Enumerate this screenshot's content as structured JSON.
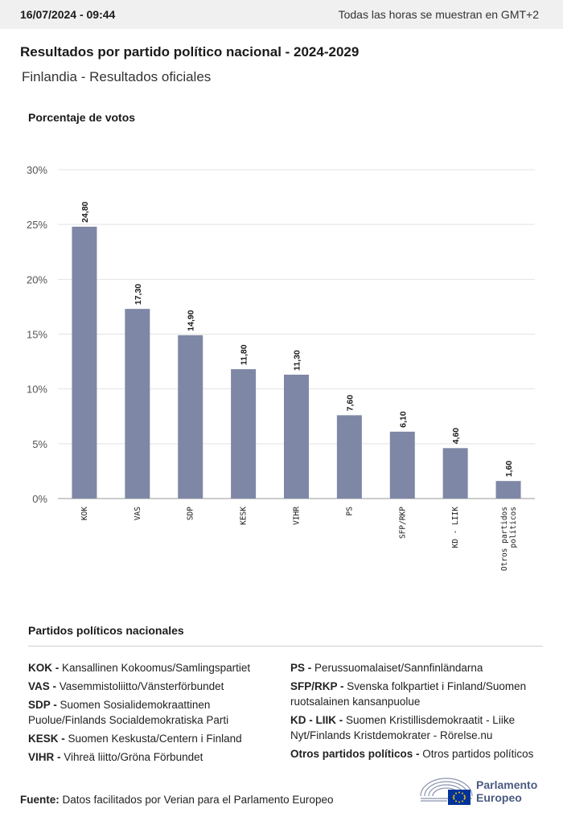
{
  "header": {
    "datetime": "16/07/2024 - 09:44",
    "timezone_note": "Todas las horas se muestran en GMT+2"
  },
  "title": "Resultados por partido político nacional - 2024-2029",
  "subtitle": "Finlandia - Resultados oficiales",
  "chart_data": {
    "type": "bar",
    "ylabel": "Porcentaje de votos",
    "xlabel": "",
    "categories": [
      "KOK",
      "VAS",
      "SDP",
      "KESK",
      "VIHR",
      "PS",
      "SFP/RKP",
      "KD - LIIK",
      "Otros partidos políticos"
    ],
    "values": [
      24.8,
      17.3,
      14.9,
      11.8,
      11.3,
      7.6,
      6.1,
      4.6,
      1.6
    ],
    "value_labels": [
      "24,80",
      "17,30",
      "14,90",
      "11,80",
      "11,30",
      "7,60",
      "6,10",
      "4,60",
      "1,60"
    ],
    "ylim": [
      0,
      30
    ],
    "yticks": [
      0,
      5,
      10,
      15,
      20,
      25,
      30
    ],
    "ytick_labels": [
      "0%",
      "5%",
      "10%",
      "15%",
      "20%",
      "25%",
      "30%"
    ],
    "grid": true,
    "bar_color": "#7e87a5"
  },
  "legend": {
    "title": "Partidos políticos nacionales",
    "left": [
      {
        "code": "KOK -",
        "name": "Kansallinen Kokoomus/Samlingspartiet"
      },
      {
        "code": "VAS -",
        "name": "Vasemmistoliitto/Vänsterförbundet"
      },
      {
        "code": "SDP -",
        "name": "Suomen Sosialidemokraattinen Puolue/Finlands Socialdemokratiska Parti"
      },
      {
        "code": "KESK -",
        "name": "Suomen Keskusta/Centern i Finland"
      },
      {
        "code": "VIHR -",
        "name": "Vihreä liitto/Gröna Förbundet"
      }
    ],
    "right": [
      {
        "code": "PS -",
        "name": "Perussuomalaiset/Sannfinländarna"
      },
      {
        "code": "SFP/RKP -",
        "name": "Svenska folkpartiet i Finland/Suomen ruotsalainen kansanpuolue"
      },
      {
        "code": "KD - LIIK -",
        "name": "Suomen Kristillisdemokraatit - Liike Nyt/Finlands Kristdemokrater - Rörelse.nu"
      },
      {
        "code": "Otros partidos políticos -",
        "name": "Otros partidos políticos"
      }
    ]
  },
  "source": {
    "label": "Fuente:",
    "text": "Datos facilitados por Verian para el Parlamento Europeo"
  },
  "logo": {
    "line1": "Parlamento",
    "line2": "Europeo",
    "icon": "european-parliament-hemicycle-icon",
    "colors": {
      "brand": "#4a5a80",
      "flag_blue": "#003399",
      "flag_star": "#ffcc00"
    }
  }
}
